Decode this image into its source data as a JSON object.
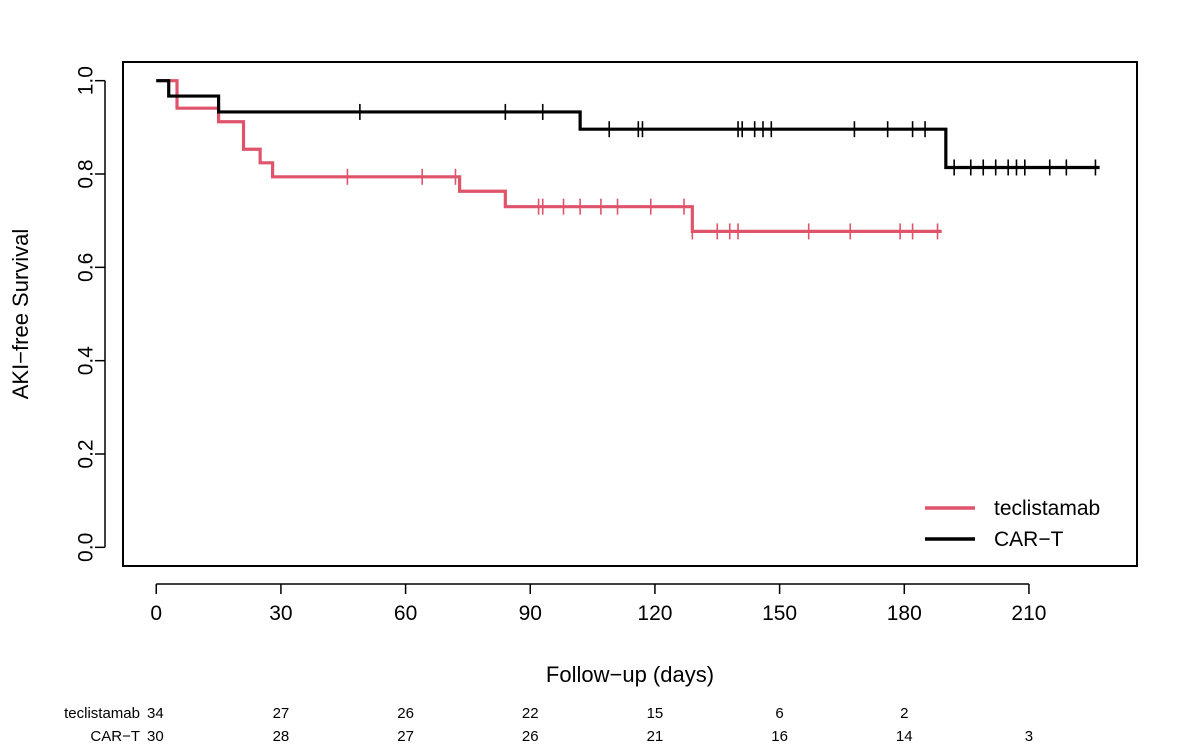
{
  "chart_data": {
    "type": "line",
    "subtype": "kaplan-meier-step",
    "xlabel": "Follow−up (days)",
    "ylabel": "AKI−free Survival",
    "xlim": [
      -8,
      236
    ],
    "ylim": [
      -0.04,
      1.04
    ],
    "x_ticks": [
      0,
      30,
      60,
      90,
      120,
      150,
      180,
      210
    ],
    "x_tick_labels": [
      "0",
      "30",
      "60",
      "90",
      "120",
      "150",
      "180",
      "210"
    ],
    "y_ticks": [
      0.0,
      0.2,
      0.4,
      0.6,
      0.8,
      1.0
    ],
    "y_tick_labels": [
      "0.0",
      "0.2",
      "0.4",
      "0.6",
      "0.8",
      "1.0"
    ],
    "grid": false,
    "legend_position": "bottom-right",
    "series": [
      {
        "name": "teclistamab",
        "color": "#df536b",
        "steps": [
          [
            0,
            1.0
          ],
          [
            5,
            0.941
          ],
          [
            15,
            0.912
          ],
          [
            21,
            0.853
          ],
          [
            25,
            0.824
          ],
          [
            28,
            0.794
          ],
          [
            73,
            0.763
          ],
          [
            84,
            0.73
          ],
          [
            129,
            0.677
          ],
          [
            189,
            0.677
          ]
        ],
        "censor_times": [
          46,
          64,
          72,
          92,
          93,
          98,
          102,
          107,
          111,
          119,
          127,
          129,
          135,
          138,
          140,
          157,
          167,
          179,
          182,
          188
        ]
      },
      {
        "name": "CAR−T",
        "color": "#000000",
        "steps": [
          [
            0,
            1.0
          ],
          [
            3,
            0.967
          ],
          [
            15,
            0.933
          ],
          [
            102,
            0.896
          ],
          [
            190,
            0.814
          ],
          [
            227,
            0.814
          ]
        ],
        "censor_times": [
          49,
          84,
          93,
          109,
          116,
          117,
          140,
          141,
          144,
          146,
          148,
          168,
          176,
          182,
          185,
          192,
          196,
          199,
          202,
          205,
          207,
          209,
          215,
          219,
          226
        ]
      }
    ],
    "risk_table": {
      "times": [
        0,
        30,
        60,
        90,
        120,
        150,
        180,
        210
      ],
      "rows": [
        {
          "label": "teclistamab",
          "counts": [
            "34",
            "27",
            "26",
            "22",
            "15",
            "6",
            "2",
            ""
          ]
        },
        {
          "label": "CAR−T",
          "counts": [
            "30",
            "28",
            "27",
            "26",
            "21",
            "16",
            "14",
            "3"
          ]
        }
      ]
    }
  }
}
